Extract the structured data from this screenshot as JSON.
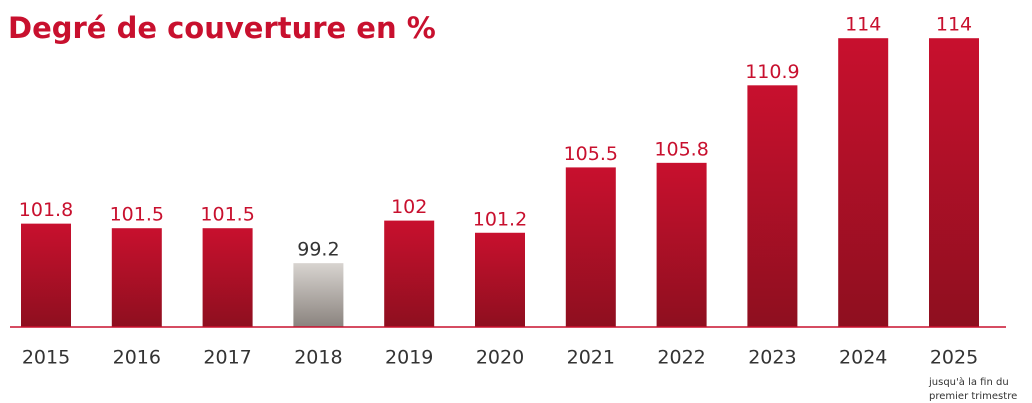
{
  "chart_data": {
    "type": "bar",
    "title": "Degré de couverture en %",
    "categories": [
      "2015",
      "2016",
      "2017",
      "2018",
      "2019",
      "2020",
      "2021",
      "2022",
      "2023",
      "2024",
      "2025"
    ],
    "values": [
      101.8,
      101.5,
      101.5,
      99.2,
      102,
      101.2,
      105.5,
      105.8,
      110.9,
      114,
      114
    ],
    "colors": [
      "#c8102e",
      "#c8102e",
      "#c8102e",
      "#b3aca6",
      "#c8102e",
      "#c8102e",
      "#c8102e",
      "#c8102e",
      "#c8102e",
      "#c8102e",
      "#c8102e"
    ],
    "ylim": [
      95,
      115
    ],
    "annotation": [
      "jusqu'à la fin du",
      "premier trimestre"
    ]
  }
}
